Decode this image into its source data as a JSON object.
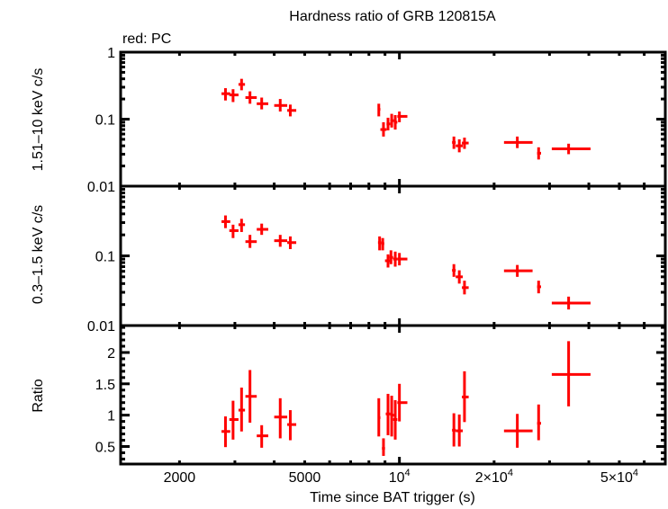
{
  "chart_data": {
    "type": "scatter",
    "title": "Hardness ratio of GRB 120815A",
    "legend_note": "red: PC",
    "series_color": "#ff0000",
    "xlabel": "Time since BAT trigger (s)",
    "xscale": "log",
    "xlim": [
      1300,
      70000
    ],
    "xticks": [
      {
        "value": 2000,
        "label": "2000"
      },
      {
        "value": 5000,
        "label": "5000"
      },
      {
        "value": 10000,
        "label": "10",
        "exp": "4"
      },
      {
        "value": 20000,
        "label": "2×10",
        "exp": "4"
      },
      {
        "value": 50000,
        "label": "5×10",
        "exp": "4"
      }
    ],
    "panels": [
      {
        "id": "hard",
        "ylabel": "1.51–10 keV c/s",
        "yscale": "log",
        "ylim": [
          0.01,
          1
        ],
        "yticks": [
          {
            "value": 1,
            "label": "1"
          },
          {
            "value": 0.1,
            "label": "0.1"
          },
          {
            "value": 0.01,
            "label": "0.01"
          }
        ],
        "points": [
          {
            "t": 2800,
            "tlo": 2720,
            "thi": 2900,
            "y": 0.24,
            "ylo": 0.19,
            "yhi": 0.29
          },
          {
            "t": 2960,
            "tlo": 2880,
            "thi": 3080,
            "y": 0.23,
            "ylo": 0.18,
            "yhi": 0.28
          },
          {
            "t": 3150,
            "tlo": 3080,
            "thi": 3230,
            "y": 0.33,
            "ylo": 0.27,
            "yhi": 0.4
          },
          {
            "t": 3350,
            "tlo": 3240,
            "thi": 3520,
            "y": 0.21,
            "ylo": 0.17,
            "yhi": 0.26
          },
          {
            "t": 3650,
            "tlo": 3520,
            "thi": 3830,
            "y": 0.17,
            "ylo": 0.14,
            "yhi": 0.21
          },
          {
            "t": 4180,
            "tlo": 4000,
            "thi": 4400,
            "y": 0.16,
            "ylo": 0.13,
            "yhi": 0.2
          },
          {
            "t": 4500,
            "tlo": 4400,
            "thi": 4700,
            "y": 0.135,
            "ylo": 0.11,
            "yhi": 0.165
          },
          {
            "t": 8600,
            "tlo": 8550,
            "thi": 8700,
            "y": 0.14,
            "ylo": 0.11,
            "yhi": 0.17
          },
          {
            "t": 8900,
            "tlo": 8700,
            "thi": 9100,
            "y": 0.07,
            "ylo": 0.055,
            "yhi": 0.09
          },
          {
            "t": 9200,
            "tlo": 9100,
            "thi": 9350,
            "y": 0.085,
            "ylo": 0.068,
            "yhi": 0.105
          },
          {
            "t": 9450,
            "tlo": 9350,
            "thi": 9600,
            "y": 0.095,
            "ylo": 0.075,
            "yhi": 0.12
          },
          {
            "t": 9700,
            "tlo": 9600,
            "thi": 9850,
            "y": 0.09,
            "ylo": 0.07,
            "yhi": 0.115
          },
          {
            "t": 10000,
            "tlo": 9850,
            "thi": 10600,
            "y": 0.11,
            "ylo": 0.09,
            "yhi": 0.13
          },
          {
            "t": 14900,
            "tlo": 14700,
            "thi": 15100,
            "y": 0.045,
            "ylo": 0.036,
            "yhi": 0.055
          },
          {
            "t": 15500,
            "tlo": 15100,
            "thi": 15900,
            "y": 0.04,
            "ylo": 0.032,
            "yhi": 0.05
          },
          {
            "t": 16100,
            "tlo": 15800,
            "thi": 16600,
            "y": 0.044,
            "ylo": 0.036,
            "yhi": 0.053
          },
          {
            "t": 23700,
            "tlo": 21500,
            "thi": 26500,
            "y": 0.045,
            "ylo": 0.037,
            "yhi": 0.055
          },
          {
            "t": 27700,
            "tlo": 27400,
            "thi": 28200,
            "y": 0.031,
            "ylo": 0.025,
            "yhi": 0.038
          },
          {
            "t": 34500,
            "tlo": 30500,
            "thi": 40500,
            "y": 0.036,
            "ylo": 0.03,
            "yhi": 0.043
          }
        ]
      },
      {
        "id": "soft",
        "ylabel": "0.3–1.5 keV c/s",
        "yscale": "log",
        "ylim": [
          0.01,
          1
        ],
        "yticks": [
          {
            "value": 0.1,
            "label": "0.1"
          },
          {
            "value": 0.01,
            "label": "0.01"
          }
        ],
        "points": [
          {
            "t": 2800,
            "tlo": 2720,
            "thi": 2900,
            "y": 0.31,
            "ylo": 0.25,
            "yhi": 0.38
          },
          {
            "t": 2960,
            "tlo": 2880,
            "thi": 3080,
            "y": 0.23,
            "ylo": 0.18,
            "yhi": 0.28
          },
          {
            "t": 3150,
            "tlo": 3080,
            "thi": 3230,
            "y": 0.28,
            "ylo": 0.22,
            "yhi": 0.34
          },
          {
            "t": 3350,
            "tlo": 3240,
            "thi": 3520,
            "y": 0.16,
            "ylo": 0.13,
            "yhi": 0.2
          },
          {
            "t": 3650,
            "tlo": 3520,
            "thi": 3830,
            "y": 0.24,
            "ylo": 0.2,
            "yhi": 0.29
          },
          {
            "t": 4180,
            "tlo": 4000,
            "thi": 4400,
            "y": 0.165,
            "ylo": 0.135,
            "yhi": 0.2
          },
          {
            "t": 4500,
            "tlo": 4400,
            "thi": 4700,
            "y": 0.155,
            "ylo": 0.125,
            "yhi": 0.19
          },
          {
            "t": 8650,
            "tlo": 8550,
            "thi": 8750,
            "y": 0.155,
            "ylo": 0.12,
            "yhi": 0.19
          },
          {
            "t": 8850,
            "tlo": 8750,
            "thi": 8950,
            "y": 0.15,
            "ylo": 0.12,
            "yhi": 0.18
          },
          {
            "t": 9200,
            "tlo": 9000,
            "thi": 9350,
            "y": 0.085,
            "ylo": 0.068,
            "yhi": 0.105
          },
          {
            "t": 9400,
            "tlo": 9300,
            "thi": 9550,
            "y": 0.095,
            "ylo": 0.076,
            "yhi": 0.12
          },
          {
            "t": 9700,
            "tlo": 9550,
            "thi": 9850,
            "y": 0.09,
            "ylo": 0.07,
            "yhi": 0.115
          },
          {
            "t": 10000,
            "tlo": 9850,
            "thi": 10600,
            "y": 0.09,
            "ylo": 0.073,
            "yhi": 0.11
          },
          {
            "t": 14900,
            "tlo": 14700,
            "thi": 15100,
            "y": 0.062,
            "ylo": 0.05,
            "yhi": 0.076
          },
          {
            "t": 15500,
            "tlo": 15100,
            "thi": 15900,
            "y": 0.05,
            "ylo": 0.04,
            "yhi": 0.062
          },
          {
            "t": 16100,
            "tlo": 15800,
            "thi": 16600,
            "y": 0.035,
            "ylo": 0.028,
            "yhi": 0.044
          },
          {
            "t": 23700,
            "tlo": 21500,
            "thi": 26500,
            "y": 0.061,
            "ylo": 0.05,
            "yhi": 0.074
          },
          {
            "t": 27700,
            "tlo": 27400,
            "thi": 28200,
            "y": 0.036,
            "ylo": 0.029,
            "yhi": 0.044
          },
          {
            "t": 34500,
            "tlo": 30500,
            "thi": 40500,
            "y": 0.021,
            "ylo": 0.017,
            "yhi": 0.026
          }
        ]
      },
      {
        "id": "ratio",
        "ylabel": "Ratio",
        "yscale": "linear",
        "ylim": [
          0.22,
          2.43
        ],
        "yticks": [
          {
            "value": 2,
            "label": "2"
          },
          {
            "value": 1.5,
            "label": "1.5"
          },
          {
            "value": 1,
            "label": "1"
          },
          {
            "value": 0.5,
            "label": "0.5"
          }
        ],
        "points": [
          {
            "t": 2800,
            "tlo": 2720,
            "thi": 2900,
            "y": 0.74,
            "ylo": 0.49,
            "yhi": 0.98
          },
          {
            "t": 2960,
            "tlo": 2880,
            "thi": 3080,
            "y": 0.93,
            "ylo": 0.61,
            "yhi": 1.23
          },
          {
            "t": 3150,
            "tlo": 3080,
            "thi": 3230,
            "y": 1.08,
            "ylo": 0.74,
            "yhi": 1.44
          },
          {
            "t": 3350,
            "tlo": 3240,
            "thi": 3520,
            "y": 1.3,
            "ylo": 0.88,
            "yhi": 1.72
          },
          {
            "t": 3650,
            "tlo": 3520,
            "thi": 3830,
            "y": 0.67,
            "ylo": 0.48,
            "yhi": 0.84
          },
          {
            "t": 4180,
            "tlo": 4000,
            "thi": 4400,
            "y": 0.97,
            "ylo": 0.63,
            "yhi": 1.27
          },
          {
            "t": 4500,
            "tlo": 4400,
            "thi": 4700,
            "y": 0.85,
            "ylo": 0.6,
            "yhi": 1.08
          },
          {
            "t": 8600,
            "tlo": 8550,
            "thi": 8700,
            "y": 0.96,
            "ylo": 0.66,
            "yhi": 1.27
          },
          {
            "t": 8900,
            "tlo": 8800,
            "thi": 9000,
            "y": 0.47,
            "ylo": 0.35,
            "yhi": 0.63
          },
          {
            "t": 9200,
            "tlo": 9050,
            "thi": 9350,
            "y": 1.02,
            "ylo": 0.68,
            "yhi": 1.34
          },
          {
            "t": 9450,
            "tlo": 9350,
            "thi": 9600,
            "y": 1.0,
            "ylo": 0.66,
            "yhi": 1.31
          },
          {
            "t": 9700,
            "tlo": 9550,
            "thi": 9850,
            "y": 0.93,
            "ylo": 0.61,
            "yhi": 1.24
          },
          {
            "t": 10000,
            "tlo": 9850,
            "thi": 10600,
            "y": 1.2,
            "ylo": 0.9,
            "yhi": 1.5
          },
          {
            "t": 14900,
            "tlo": 14700,
            "thi": 15100,
            "y": 0.76,
            "ylo": 0.5,
            "yhi": 1.03
          },
          {
            "t": 15500,
            "tlo": 15100,
            "thi": 15900,
            "y": 0.75,
            "ylo": 0.5,
            "yhi": 1.01
          },
          {
            "t": 16100,
            "tlo": 15800,
            "thi": 16600,
            "y": 1.29,
            "ylo": 0.89,
            "yhi": 1.7
          },
          {
            "t": 23700,
            "tlo": 21500,
            "thi": 26500,
            "y": 0.75,
            "ylo": 0.48,
            "yhi": 1.02
          },
          {
            "t": 27700,
            "tlo": 27400,
            "thi": 28200,
            "y": 0.87,
            "ylo": 0.6,
            "yhi": 1.17
          },
          {
            "t": 34500,
            "tlo": 30500,
            "thi": 40500,
            "y": 1.65,
            "ylo": 1.14,
            "yhi": 2.18
          }
        ]
      }
    ]
  }
}
